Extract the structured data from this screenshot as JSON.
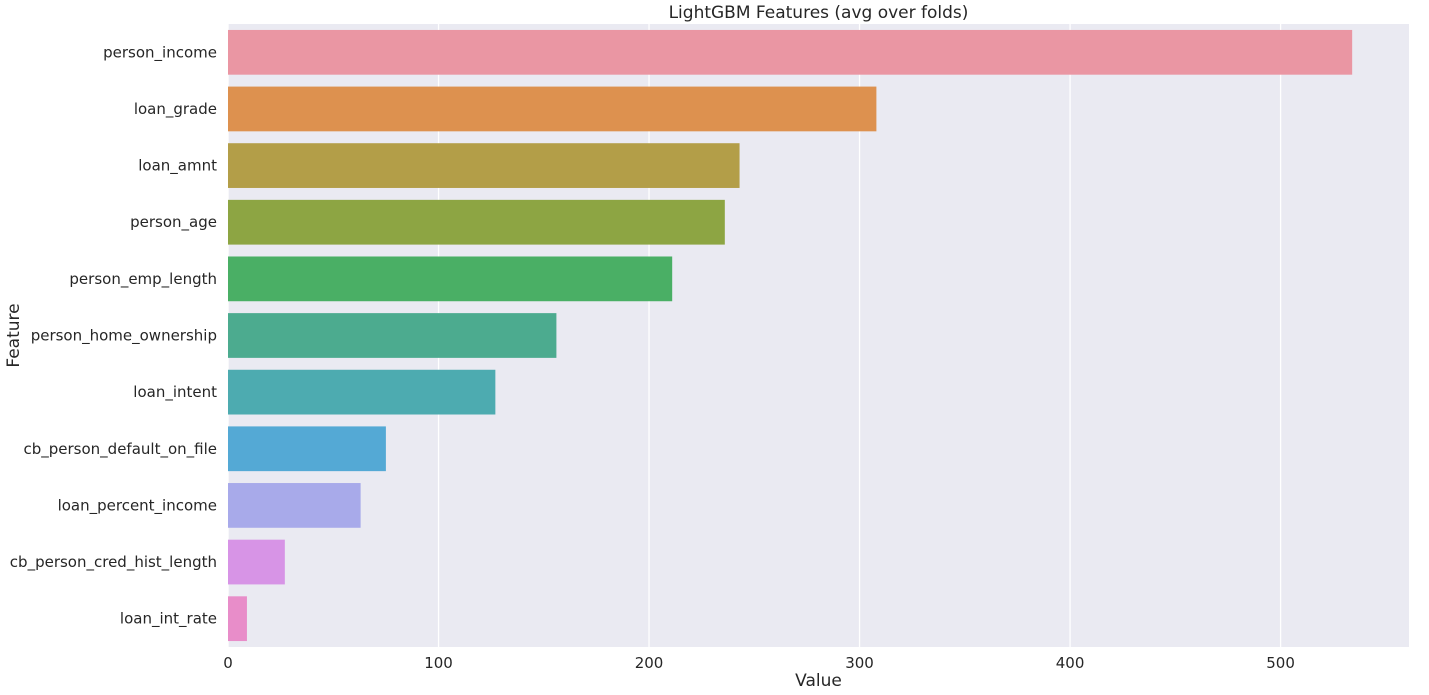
{
  "chart_data": {
    "type": "bar",
    "orientation": "horizontal",
    "title": "LightGBM Features (avg over folds)",
    "xlabel": "Value",
    "ylabel": "Feature",
    "xlim": [
      0,
      561
    ],
    "xticks": [
      0,
      100,
      200,
      300,
      400,
      500
    ],
    "grid": true,
    "categories": [
      "person_income",
      "loan_grade",
      "loan_amnt",
      "person_age",
      "person_emp_length",
      "person_home_ownership",
      "loan_intent",
      "cb_person_default_on_file",
      "loan_percent_income",
      "cb_person_cred_hist_length",
      "loan_int_rate"
    ],
    "values": [
      534,
      308,
      243,
      236,
      211,
      156,
      127,
      75,
      63,
      27,
      9
    ],
    "colors": [
      "#ea96a3",
      "#dd914f",
      "#b39e48",
      "#8da543",
      "#4aaf65",
      "#4cab8f",
      "#4dabb0",
      "#54a9d5",
      "#a8aaea",
      "#d794e6",
      "#e88dc9"
    ],
    "background_color": "#eaeaf2",
    "grid_color": "#ffffff"
  }
}
